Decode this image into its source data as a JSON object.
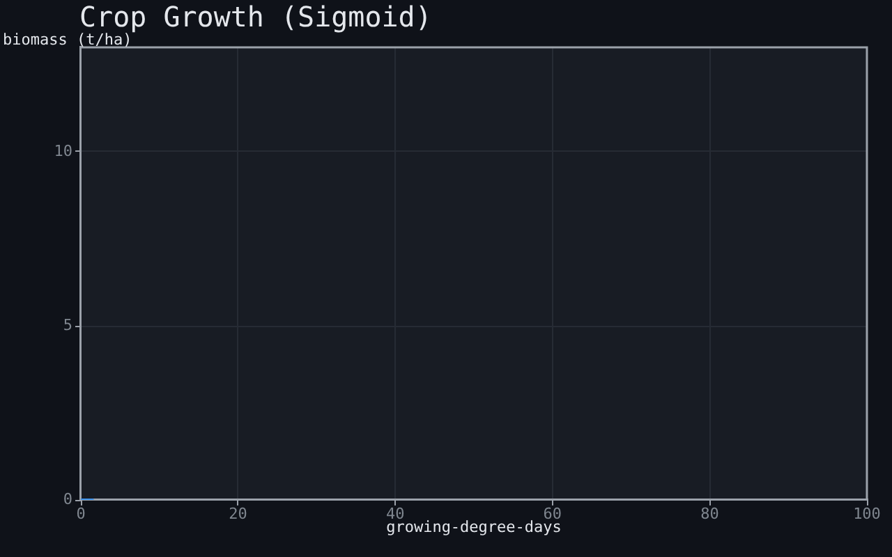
{
  "chart_data": {
    "type": "line",
    "title": "Crop Growth (Sigmoid)",
    "xlabel": "growing-degree-days",
    "ylabel": "biomass (t/ha)",
    "x": [
      0,
      1.5
    ],
    "series": [
      {
        "color": "#3b8fe8",
        "values": [
          0,
          0
        ]
      }
    ],
    "xlim": [
      0,
      100
    ],
    "xticks": [
      0,
      20,
      40,
      60,
      80,
      100
    ],
    "ylim": [
      0,
      13
    ],
    "yticks": [
      0,
      5,
      10
    ],
    "grid": true,
    "legend": false
  }
}
